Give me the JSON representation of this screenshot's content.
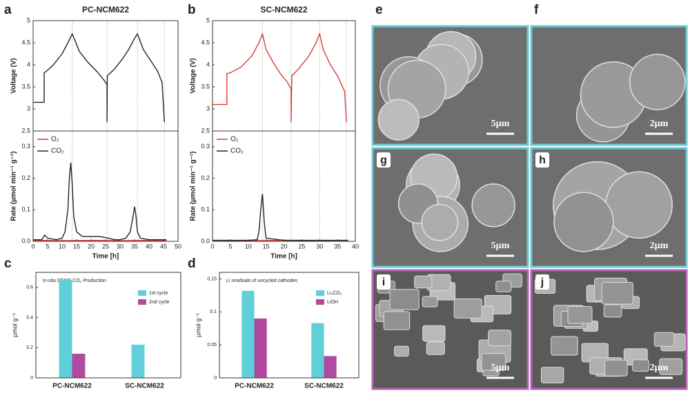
{
  "chart_data": [
    {
      "type": "line",
      "label": "a",
      "title": "PC-NCM622",
      "xlabel": "Time [h]",
      "xlim": [
        0,
        50
      ],
      "xticks": [
        0,
        5,
        10,
        15,
        20,
        25,
        30,
        35,
        40,
        45,
        50
      ],
      "vlines": [
        13.5,
        25.5,
        36,
        45.3
      ],
      "panels": [
        {
          "ylabel": "Voltage (V)",
          "ylim": [
            2.5,
            5
          ],
          "yticks": [
            2.5,
            3,
            3.5,
            4,
            4.5,
            5
          ],
          "series": [
            {
              "color": "#222222",
              "x": [
                0,
                3.8,
                3.8,
                4.5,
                7,
                10,
                12,
                13.5,
                16,
                19,
                22,
                24.5,
                25.5,
                25.5,
                25.6,
                28,
                31,
                33,
                35,
                36,
                38,
                41,
                43,
                44.5,
                45.3
              ],
              "values": [
                3.15,
                3.15,
                3.82,
                3.85,
                4.0,
                4.25,
                4.5,
                4.7,
                4.3,
                4.05,
                3.85,
                3.65,
                3.55,
                2.7,
                3.75,
                3.9,
                4.15,
                4.35,
                4.6,
                4.7,
                4.35,
                4.05,
                3.85,
                3.6,
                2.7
              ]
            }
          ]
        },
        {
          "ylabel": "Rate (µmol min⁻¹ g⁻¹)",
          "ylim": [
            0,
            0.35
          ],
          "yticks": [
            {
              "value": 0,
              "label": "0.0"
            },
            0.1,
            0.2,
            0.3
          ],
          "series": [
            {
              "name": "O₂",
              "color": "#e03030",
              "x": [
                0,
                10,
                20,
                30,
                40,
                46
              ],
              "values": [
                0.003,
                0.002,
                0.003,
                0.002,
                0.003,
                0.002
              ]
            },
            {
              "name": "CO₂",
              "color": "#222222",
              "x": [
                0,
                3,
                4,
                5,
                8,
                10,
                11,
                12,
                12.5,
                13,
                13.5,
                14,
                15,
                17,
                20,
                23,
                26,
                28,
                30,
                32,
                33.5,
                34.5,
                35,
                35.5,
                36,
                37,
                40,
                43,
                45,
                46
              ],
              "values": [
                0.005,
                0.005,
                0.02,
                0.01,
                0.005,
                0.01,
                0.03,
                0.1,
                0.2,
                0.25,
                0.18,
                0.08,
                0.03,
                0.015,
                0.015,
                0.015,
                0.01,
                0.005,
                0.005,
                0.01,
                0.03,
                0.08,
                0.11,
                0.08,
                0.03,
                0.01,
                0.005,
                0.005,
                0.005,
                0.005
              ]
            }
          ]
        }
      ]
    },
    {
      "type": "line",
      "label": "b",
      "title": "SC-NCM622",
      "xlabel": "Time [h]",
      "xlim": [
        0,
        40
      ],
      "xticks": [
        0,
        5,
        10,
        15,
        20,
        25,
        30,
        35,
        40
      ],
      "vlines": [
        14,
        22,
        30,
        37.5
      ],
      "panels": [
        {
          "ylabel": "Voltage (V)",
          "ylim": [
            2.5,
            5
          ],
          "yticks": [
            2.5,
            3,
            3.5,
            4,
            4.5,
            5
          ],
          "series": [
            {
              "color": "#d93a3a",
              "x": [
                0,
                4,
                4,
                5,
                8,
                11,
                13,
                14,
                15,
                17,
                19,
                21,
                22,
                22,
                22.2,
                24,
                27,
                29,
                30,
                31,
                33,
                35,
                37,
                37.5
              ],
              "values": [
                3.1,
                3.1,
                3.8,
                3.82,
                3.95,
                4.2,
                4.5,
                4.7,
                4.35,
                4.05,
                3.8,
                3.6,
                3.45,
                2.7,
                3.75,
                3.9,
                4.2,
                4.5,
                4.7,
                4.35,
                4.0,
                3.75,
                3.4,
                2.7
              ]
            }
          ]
        },
        {
          "ylabel": "Rate (µmol min⁻¹ g⁻¹)",
          "ylim": [
            0,
            0.35
          ],
          "yticks": [
            {
              "value": 0,
              "label": "0.0"
            },
            0.1,
            0.2,
            0.3
          ],
          "series": [
            {
              "name": "O₂",
              "color": "#e03030",
              "x": [
                0,
                10,
                20,
                30,
                38
              ],
              "values": [
                0.003,
                0.002,
                0.003,
                0.002,
                0.003
              ]
            },
            {
              "name": "CO₂",
              "color": "#222222",
              "x": [
                0,
                5,
                10,
                12.5,
                13,
                13.5,
                14,
                14.5,
                15,
                20,
                25,
                30,
                35,
                38
              ],
              "values": [
                0.003,
                0.003,
                0.003,
                0.005,
                0.03,
                0.1,
                0.15,
                0.06,
                0.01,
                0.003,
                0.003,
                0.003,
                0.003,
                0.003
              ]
            }
          ]
        }
      ]
    },
    {
      "type": "bar",
      "label": "c",
      "title": "In-situ DEMS CO₂ Production",
      "ylabel": "µmol g⁻¹",
      "categories": [
        "PC-NCM622",
        "SC-NCM622"
      ],
      "ylim": [
        0,
        0.7
      ],
      "yticks": [
        0,
        0.2,
        0.4,
        0.6
      ],
      "series": [
        {
          "name": "1st  cycle",
          "color": "#5fcfd8",
          "values": [
            0.65,
            0.22
          ]
        },
        {
          "name": "2nd cycle",
          "color": "#b04aa0",
          "values": [
            0.16,
            0
          ]
        }
      ]
    },
    {
      "type": "bar",
      "label": "d",
      "title": "Li residuals of uncycled cathodes",
      "ylabel": "µmol g⁻¹",
      "categories": [
        "PC-NCM622",
        "SC-NCM622"
      ],
      "ylim": [
        0,
        0.16
      ],
      "yticks": [
        0,
        0.05,
        0.1,
        0.15
      ],
      "series": [
        {
          "name": "Li₂CO₃",
          "color": "#5fcfd8",
          "values": [
            0.132,
            0.083
          ]
        },
        {
          "name": "LiOH",
          "color": "#b04aa0",
          "values": [
            0.09,
            0.033
          ]
        }
      ]
    }
  ],
  "images": [
    {
      "label": "e",
      "scale": "5µm",
      "border": "#6cc9d6"
    },
    {
      "label": "f",
      "scale": "2µm",
      "border": "#6cc9d6"
    },
    {
      "label": "g",
      "scale": "5µm",
      "border": "#6cc9d6"
    },
    {
      "label": "h",
      "scale": "2µm",
      "border": "#6cc9d6"
    },
    {
      "label": "i",
      "scale": "5µm",
      "border": "#b560b5"
    },
    {
      "label": "j",
      "scale": "2µm",
      "border": "#b560b5"
    }
  ]
}
